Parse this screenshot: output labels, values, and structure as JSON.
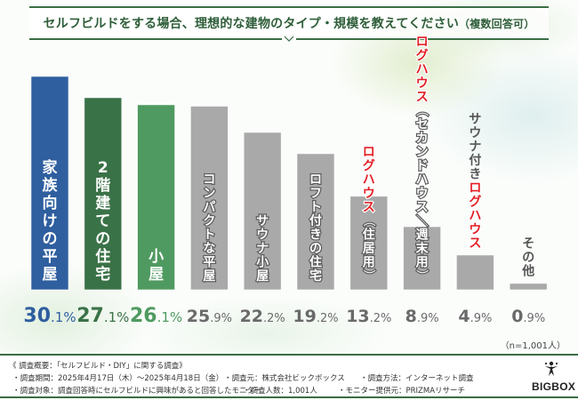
{
  "header": {
    "title": "セルフビルドをする場合、理想的な建物のタイプ・規模を教えてください",
    "title_note": "（複数回答可）"
  },
  "chart_data": {
    "type": "bar",
    "title": "セルフビルドをする場合、理想的な建物のタイプ・規模を教えてください（複数回答可）",
    "xlabel": "",
    "ylabel": "",
    "unit": "%",
    "ylim": [
      0,
      30.1
    ],
    "grid": false,
    "categories": [
      "家族向けの平屋",
      "2階建ての住宅",
      "小屋",
      "コンパクトな平屋",
      "サウナ小屋",
      "ロフト付きの住宅",
      "ログハウス（住居用）",
      "ログハウス（セカンドハウス／週末用）",
      "サウナ付きログハウス",
      "その他"
    ],
    "values": [
      30.1,
      27.1,
      26.1,
      25.9,
      22.2,
      19.2,
      13.2,
      8.9,
      4.9,
      0.9
    ],
    "value_labels": [
      {
        "int": "30",
        "dec": ".1%"
      },
      {
        "int": "27",
        "dec": ".1%"
      },
      {
        "int": "26",
        "dec": ".1%"
      },
      {
        "int": "25",
        "dec": ".9%"
      },
      {
        "int": "22",
        "dec": ".2%"
      },
      {
        "int": "19",
        "dec": ".2%"
      },
      {
        "int": "13",
        "dec": ".2%"
      },
      {
        "int": "8",
        "dec": ".9%"
      },
      {
        "int": "4",
        "dec": ".9%"
      },
      {
        "int": "0",
        "dec": ".9%"
      }
    ],
    "label_segments": [
      [
        {
          "t": "家族向けの平屋",
          "red": false
        }
      ],
      [
        {
          "t": "2階建ての住宅",
          "red": false
        }
      ],
      [
        {
          "t": "小屋",
          "red": false
        }
      ],
      [
        {
          "t": "コンパクトな平屋",
          "red": false
        }
      ],
      [
        {
          "t": "サウナ小屋",
          "red": false
        }
      ],
      [
        {
          "t": "ロフト付きの住宅",
          "red": false
        }
      ],
      [
        {
          "t": "ログハウス",
          "red": true
        },
        {
          "t": "（住居用）",
          "red": false
        }
      ],
      [
        {
          "t": "ログハウス",
          "red": true
        },
        {
          "t": "（セカンドハウス／週末用）",
          "red": false
        }
      ],
      [
        {
          "t": "サウナ付き",
          "red": false
        },
        {
          "t": "ログハウス",
          "red": true
        }
      ],
      [
        {
          "t": "その他",
          "red": false
        }
      ]
    ],
    "label_inside": [
      true,
      true,
      true,
      true,
      true,
      true,
      true,
      true,
      false,
      false
    ],
    "colors": [
      "#2f5f9f",
      "#3a7247",
      "#4f9a60",
      "#a9a9a9",
      "#a9a9a9",
      "#a9a9a9",
      "#a9a9a9",
      "#a9a9a9",
      "#a9a9a9",
      "#a9a9a9"
    ],
    "value_colors": [
      "#2f5f9f",
      "#3a7247",
      "#4f9a60",
      "#6a6a6a",
      "#6a6a6a",
      "#6a6a6a",
      "#6a6a6a",
      "#6a6a6a",
      "#6a6a6a",
      "#6a6a6a"
    ],
    "highlight_color": "#e31e24",
    "sample_size": "（n=1,001人）"
  },
  "footer": {
    "summary": "《 調査概要：「セルフビルド・DIY」に関する調査》",
    "period": "・調査期間：2025年4月17日（木）～2025年4月18日（金）",
    "organizer": "・調査元：株式会社ビックボックス",
    "method": "・調査方法：インターネット調査",
    "target": "・調査対象：調査回答時にセルフビルドに興味があると回答したモニター",
    "respondents": "・調査人数：1,001人",
    "provider": "・モニター提供元：PRIZMAリサーチ"
  },
  "logo": {
    "text": "BIGBOX",
    "icon": "tree-person-icon"
  }
}
